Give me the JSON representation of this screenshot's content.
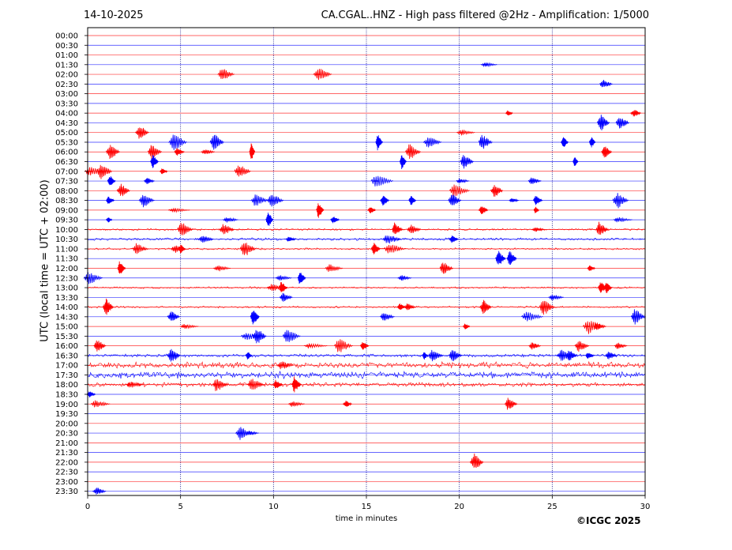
{
  "header": {
    "date": "14-10-2025",
    "title": "CA.CGAL..HNZ - High pass filtered @2Hz - Amplification: 1/5000"
  },
  "footer": {
    "copyright": "©ICGC 2025"
  },
  "colors": {
    "red": "#ff0000",
    "blue": "#0000ff",
    "grid": "#000080"
  },
  "chart_data": {
    "type": "line",
    "title": "CA.CGAL..HNZ - High pass filtered @2Hz - Amplification: 1/5000",
    "xlabel": "time in minutes",
    "ylabel": "UTC (local time = UTC + 02:00)",
    "xlim": [
      0,
      30
    ],
    "xticks": [
      0,
      5,
      10,
      15,
      20,
      25,
      30
    ],
    "grid": "vertical dotted lines at 5-minute intervals",
    "series_colors": [
      "red",
      "blue"
    ],
    "rows": [
      {
        "label": "00:00",
        "events": []
      },
      {
        "label": "00:30",
        "events": []
      },
      {
        "label": "01:00",
        "events": []
      },
      {
        "label": "01:30",
        "events": [
          21.4
        ]
      },
      {
        "label": "02:00",
        "events": [
          7.2,
          12.4
        ]
      },
      {
        "label": "02:30",
        "events": [
          27.7
        ]
      },
      {
        "label": "03:00",
        "events": []
      },
      {
        "label": "03:30",
        "events": []
      },
      {
        "label": "04:00",
        "events": [
          22.6,
          29.4
        ]
      },
      {
        "label": "04:30",
        "events": [
          27.6,
          28.6
        ]
      },
      {
        "label": "05:00",
        "events": [
          2.8,
          20.1
        ]
      },
      {
        "label": "05:30",
        "events": [
          4.6,
          6.8,
          15.6,
          18.3,
          21.2,
          25.6,
          27.1
        ]
      },
      {
        "label": "06:00",
        "events": [
          1.2,
          3.4,
          4.8,
          6.3,
          8.8,
          17.3,
          27.8
        ]
      },
      {
        "label": "06:30",
        "events": [
          3.5,
          16.9,
          20.2,
          26.2
        ]
      },
      {
        "label": "07:00",
        "events": [
          0.1,
          0.7,
          4.0,
          8.1
        ]
      },
      {
        "label": "07:30",
        "events": [
          1.2,
          3.2,
          15.5,
          20.0,
          23.9
        ]
      },
      {
        "label": "08:00",
        "events": [
          1.8,
          19.7,
          21.9
        ]
      },
      {
        "label": "08:30",
        "events": [
          1.1,
          3.0,
          9.0,
          9.9,
          15.9,
          17.4,
          19.6,
          22.8,
          24.1,
          28.5
        ]
      },
      {
        "label": "09:00",
        "events": [
          4.6,
          12.4,
          15.2,
          21.2,
          24.1
        ]
      },
      {
        "label": "09:30",
        "events": [
          1.1,
          7.5,
          9.7,
          13.2,
          28.5
        ]
      },
      {
        "label": "10:00",
        "events": [
          5.0,
          7.3,
          16.5,
          17.4,
          24.1,
          27.5
        ]
      },
      {
        "label": "10:30",
        "events": [
          6.2,
          10.8,
          16.1,
          19.6
        ]
      },
      {
        "label": "11:00",
        "events": [
          2.6,
          4.7,
          5.0,
          8.4,
          15.4,
          16.2
        ]
      },
      {
        "label": "11:30",
        "events": [
          22.1,
          22.7
        ]
      },
      {
        "label": "12:00",
        "events": [
          1.7,
          7.0,
          13.0,
          19.1,
          27.0
        ]
      },
      {
        "label": "12:30",
        "events": [
          0.0,
          10.3,
          11.4,
          16.9
        ]
      },
      {
        "label": "13:00",
        "events": [
          9.9,
          10.4,
          27.6,
          27.9
        ]
      },
      {
        "label": "13:30",
        "events": [
          10.5,
          25.0
        ]
      },
      {
        "label": "14:00",
        "events": [
          1.0,
          16.8,
          17.2,
          21.3,
          24.5
        ]
      },
      {
        "label": "14:30",
        "events": [
          4.5,
          8.9,
          15.9,
          23.6,
          29.4
        ]
      },
      {
        "label": "15:00",
        "events": [
          5.2,
          20.3,
          26.9,
          27.4
        ]
      },
      {
        "label": "15:30",
        "events": [
          8.5,
          9.1,
          10.7
        ]
      },
      {
        "label": "16:00",
        "events": [
          0.5,
          11.9,
          13.5,
          14.8,
          23.9,
          26.4,
          28.5
        ]
      },
      {
        "label": "16:30",
        "events": [
          4.5,
          8.6,
          18.1,
          18.5,
          19.6,
          25.5,
          25.9,
          26.9,
          28.0
        ]
      },
      {
        "label": "17:00",
        "events": [
          10.4
        ]
      },
      {
        "label": "17:30",
        "events": []
      },
      {
        "label": "18:00",
        "events": [
          2.3,
          6.9,
          8.8,
          10.1,
          11.1
        ]
      },
      {
        "label": "18:30",
        "events": [
          0.1
        ]
      },
      {
        "label": "19:00",
        "events": [
          0.4,
          11.0,
          13.9,
          22.6
        ]
      },
      {
        "label": "19:30",
        "events": []
      },
      {
        "label": "20:00",
        "events": []
      },
      {
        "label": "20:30",
        "events": [
          8.2,
          8.7
        ]
      },
      {
        "label": "21:00",
        "events": []
      },
      {
        "label": "21:30",
        "events": []
      },
      {
        "label": "22:00",
        "events": [
          20.8
        ]
      },
      {
        "label": "22:30",
        "events": []
      },
      {
        "label": "23:00",
        "events": []
      },
      {
        "label": "23:30",
        "events": [
          0.5
        ]
      }
    ]
  }
}
